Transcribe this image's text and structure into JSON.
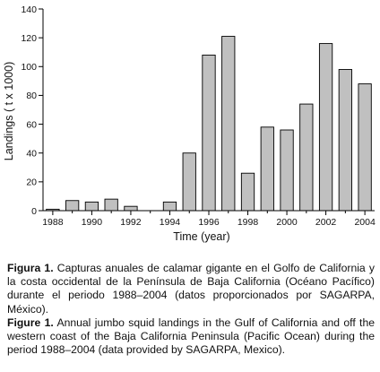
{
  "chart_data": {
    "type": "bar",
    "title": "",
    "xlabel": "Time (year)",
    "ylabel": "Landings ( t x 1000)",
    "ylim": [
      0,
      140
    ],
    "yticks": [
      0,
      20,
      40,
      60,
      80,
      100,
      120,
      140
    ],
    "xticks": [
      1988,
      1990,
      1992,
      1994,
      1996,
      1998,
      2000,
      2002,
      2004
    ],
    "x": [
      1988,
      1989,
      1990,
      1991,
      1992,
      1993,
      1994,
      1995,
      1996,
      1997,
      1998,
      1999,
      2000,
      2001,
      2002,
      2003,
      2004
    ],
    "values": [
      1,
      7,
      6,
      8,
      3,
      0,
      6,
      40,
      108,
      121,
      26,
      58,
      56,
      74,
      116,
      98,
      88
    ],
    "grid": false,
    "bar_color": "#c0c0c0"
  },
  "captions": {
    "es": {
      "label": "Figura 1.",
      "text": " Capturas anuales de calamar gigante en el Golfo de California y la costa occidental de la Península de Baja California (Océano Pacífico) durante el periodo 1988–2004 (datos proporcionados por SAGARPA, México)."
    },
    "en": {
      "label": "Figure 1.",
      "text": " Annual jumbo squid landings in the Gulf of California and off the western coast of the Baja California Peninsula (Pacific Ocean) during the period 1988–2004 (data provided by SAGARPA, Mexico)."
    }
  }
}
